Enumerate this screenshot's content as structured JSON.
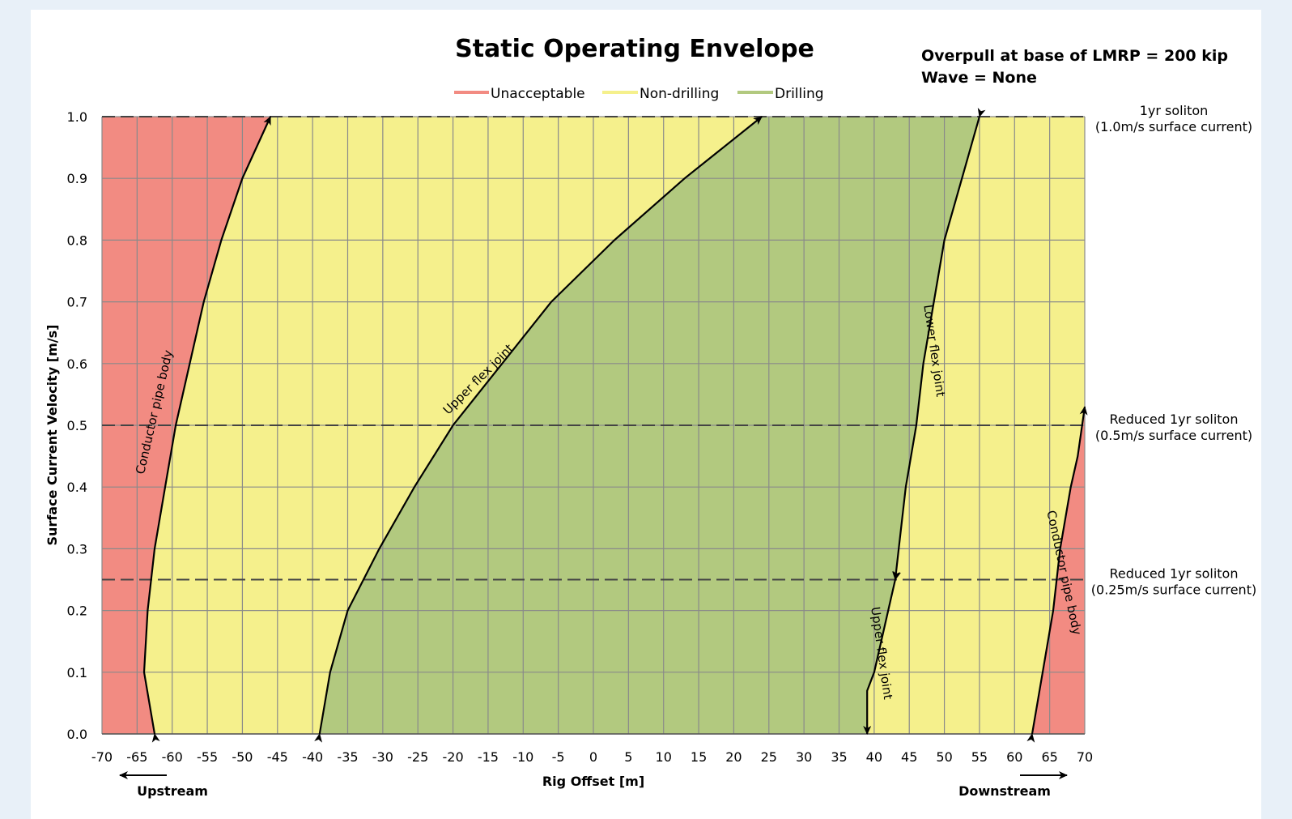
{
  "chart_data": {
    "type": "area",
    "title": "Static Operating Envelope",
    "notes": [
      "Overpull at base of LMRP = 200 kip",
      "Wave = None"
    ],
    "xlabel": "Rig Offset [m]",
    "ylabel": "Surface Current Velocity [m/s]",
    "xlim": [
      -70,
      70
    ],
    "ylim": [
      0,
      1.0
    ],
    "xticks": [
      -70,
      -65,
      -60,
      -55,
      -50,
      -45,
      -40,
      -35,
      -30,
      -25,
      -20,
      -15,
      -10,
      -5,
      0,
      5,
      10,
      15,
      20,
      25,
      30,
      35,
      40,
      45,
      50,
      55,
      60,
      65,
      70
    ],
    "yticks": [
      0.0,
      0.1,
      0.2,
      0.3,
      0.4,
      0.5,
      0.6,
      0.7,
      0.8,
      0.9,
      1.0
    ],
    "ytick_labels": [
      "0.0",
      "0.1",
      "0.2",
      "0.3",
      "0.4",
      "0.5",
      "0.6",
      "0.7",
      "0.8",
      "0.9",
      "1.0"
    ],
    "grid": true,
    "legend_position": "top-center",
    "legend": [
      {
        "label": "Unacceptable",
        "color": "#f28b82"
      },
      {
        "label": "Non-drilling",
        "color": "#f5f08c"
      },
      {
        "label": "Drilling",
        "color": "#b2c97f"
      }
    ],
    "direction_labels": {
      "left": "Upstream",
      "right": "Downstream"
    },
    "reference_lines": [
      {
        "y": 1.0,
        "label_lines": [
          "1yr soliton",
          "(1.0m/s surface current)"
        ]
      },
      {
        "y": 0.5,
        "label_lines": [
          "Reduced 1yr soliton",
          "(0.5m/s surface current)"
        ]
      },
      {
        "y": 0.25,
        "label_lines": [
          "Reduced 1yr soliton",
          "(0.25m/s surface current)"
        ]
      }
    ],
    "curves": [
      {
        "name": "Conductor pipe body",
        "side": "upstream",
        "points": [
          [
            -62.5,
            0.0
          ],
          [
            -64,
            0.1
          ],
          [
            -63.5,
            0.2
          ],
          [
            -62.5,
            0.3
          ],
          [
            -61,
            0.4
          ],
          [
            -59.5,
            0.5
          ],
          [
            -57.5,
            0.6
          ],
          [
            -55.5,
            0.7
          ],
          [
            -53,
            0.8
          ],
          [
            -50,
            0.9
          ],
          [
            -46,
            1.0
          ]
        ]
      },
      {
        "name": "Upper flex joint",
        "side": "upstream",
        "points": [
          [
            -39,
            0.0
          ],
          [
            -37.5,
            0.1
          ],
          [
            -35,
            0.2
          ],
          [
            -30.5,
            0.3
          ],
          [
            -25.5,
            0.4
          ],
          [
            -20,
            0.5
          ],
          [
            -13,
            0.6
          ],
          [
            -6,
            0.7
          ],
          [
            3,
            0.8
          ],
          [
            13,
            0.9
          ],
          [
            24,
            1.0
          ],
          [
            34,
            1.0
          ]
        ]
      },
      {
        "name": "Lower flex joint",
        "side": "downstream",
        "points": [
          [
            55,
            1.0
          ],
          [
            52.5,
            0.9
          ],
          [
            50,
            0.8
          ],
          [
            48.5,
            0.7
          ],
          [
            47,
            0.6
          ],
          [
            46,
            0.5
          ],
          [
            44.5,
            0.4
          ],
          [
            43.5,
            0.3
          ],
          [
            43,
            0.25
          ]
        ]
      },
      {
        "name": "Upper flex joint",
        "side": "downstream",
        "points": [
          [
            43,
            0.25
          ],
          [
            42,
            0.2
          ],
          [
            40,
            0.1
          ],
          [
            39,
            0.07
          ],
          [
            39,
            0.0
          ]
        ]
      },
      {
        "name": "Conductor pipe body",
        "side": "downstream",
        "points": [
          [
            62.5,
            0.0
          ],
          [
            64,
            0.1
          ],
          [
            65.5,
            0.2
          ],
          [
            66.5,
            0.3
          ],
          [
            68,
            0.4
          ],
          [
            69,
            0.45
          ],
          [
            70,
            0.53
          ]
        ]
      }
    ],
    "regions": [
      {
        "label": "Unacceptable",
        "description": "left of upstream conductor pipe body curve and right of downstream conductor pipe body curve"
      },
      {
        "label": "Drilling",
        "description": "between upstream upper flex joint curve and downstream lower/upper flex joint curves"
      },
      {
        "label": "Non-drilling",
        "description": "remaining area"
      }
    ]
  }
}
